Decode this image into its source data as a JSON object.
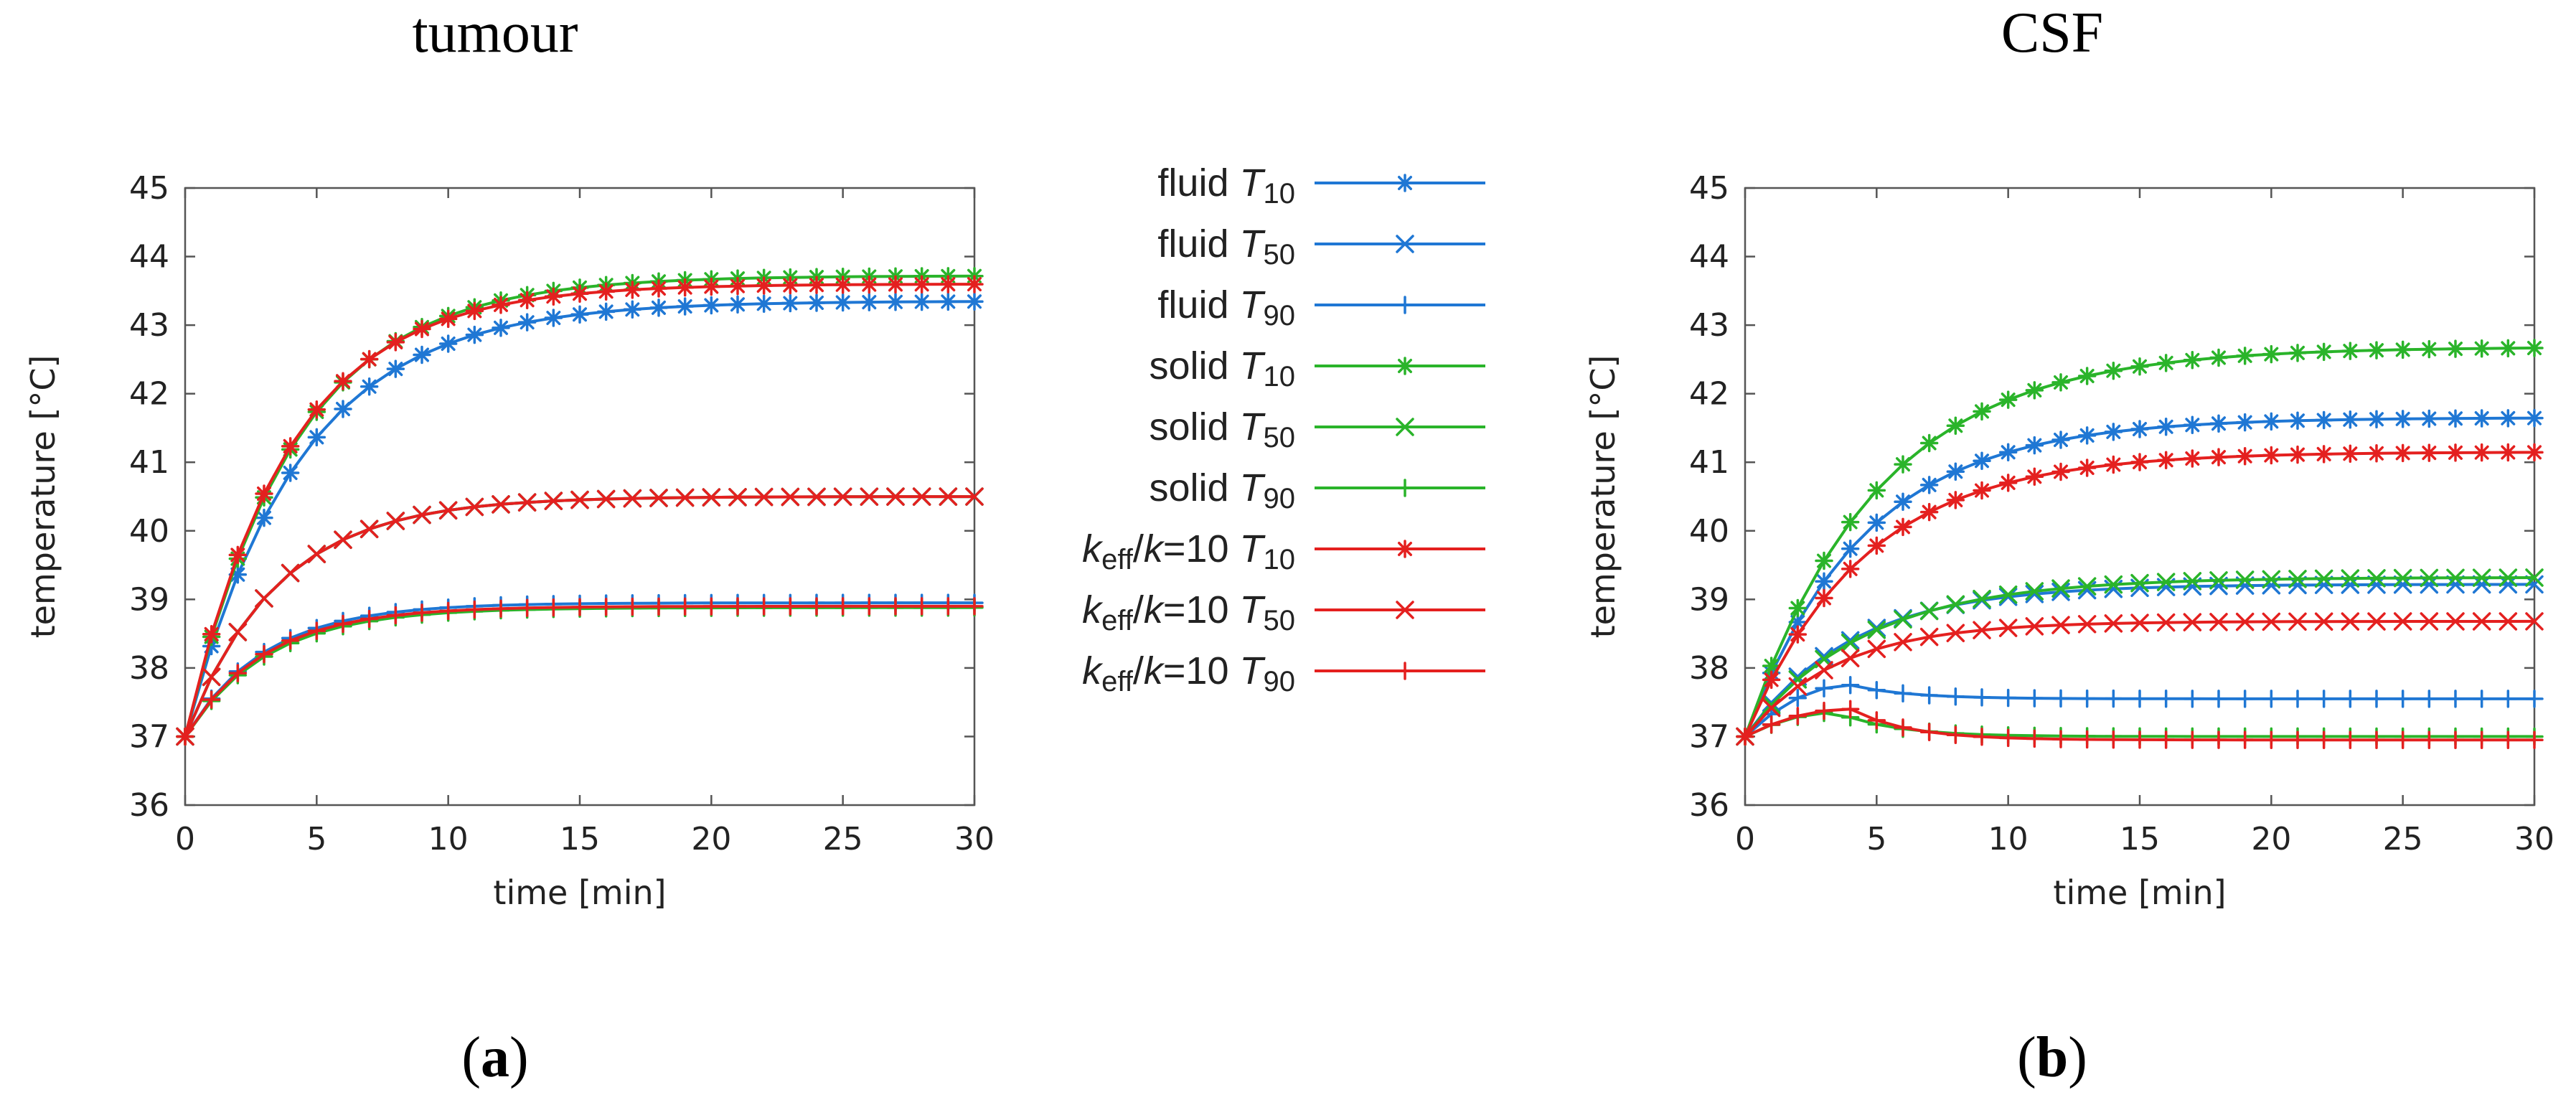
{
  "chart_data": [
    {
      "type": "line",
      "panel": "a",
      "title": "tumour",
      "panel_label": {
        "open": "(",
        "letter": "a",
        "close": ")"
      },
      "xlabel": "time [min]",
      "ylabel": "temperature [°C]",
      "xlim": [
        0,
        30
      ],
      "ylim": [
        36,
        45
      ],
      "xticks": [
        0,
        5,
        10,
        15,
        20,
        25,
        30
      ],
      "yticks": [
        36,
        37,
        38,
        39,
        40,
        41,
        42,
        43,
        44,
        45
      ],
      "series": [
        {
          "name": "fluid T10",
          "color": "#1f77d4",
          "marker": "asterisk",
          "params": {
            "a": 37,
            "b": 43.35,
            "tau": 4.3
          }
        },
        {
          "name": "fluid T50",
          "color": "#1f77d4",
          "marker": "x",
          "params": {
            "a": 37,
            "b": 40.5,
            "tau": 3.5
          }
        },
        {
          "name": "fluid T90",
          "color": "#1f77d4",
          "marker": "plus",
          "params": {
            "a": 37,
            "b": 38.95,
            "tau": 3.0
          }
        },
        {
          "name": "solid T10",
          "color": "#2ab42a",
          "marker": "asterisk",
          "params": {
            "a": 37,
            "b": 43.72,
            "tau": 4.1
          }
        },
        {
          "name": "solid T50",
          "color": "#2ab42a",
          "marker": "x",
          "params": {
            "a": 37,
            "b": 40.5,
            "tau": 3.5
          }
        },
        {
          "name": "solid T90",
          "color": "#2ab42a",
          "marker": "plus",
          "params": {
            "a": 37,
            "b": 38.88,
            "tau": 3.1
          }
        },
        {
          "name": "keff/k=10 T10",
          "color": "#e4201f",
          "marker": "asterisk",
          "params": {
            "a": 37,
            "b": 43.6,
            "tau": 3.9
          }
        },
        {
          "name": "keff/k=10 T50",
          "color": "#e4201f",
          "marker": "x",
          "params": {
            "a": 37,
            "b": 40.5,
            "tau": 3.5
          }
        },
        {
          "name": "keff/k=10 T90",
          "color": "#e4201f",
          "marker": "plus",
          "params": {
            "a": 37,
            "b": 38.9,
            "tau": 3.0
          }
        }
      ]
    },
    {
      "type": "line",
      "panel": "b",
      "title": "CSF",
      "panel_label": {
        "open": "(",
        "letter": "b",
        "close": ")"
      },
      "xlabel": "time [min]",
      "ylabel": "temperature [°C]",
      "xlim": [
        0,
        30
      ],
      "ylim": [
        36,
        45
      ],
      "xticks": [
        0,
        5,
        10,
        15,
        20,
        25,
        30
      ],
      "yticks": [
        36,
        37,
        38,
        39,
        40,
        41,
        42,
        43,
        44,
        45
      ],
      "series": [
        {
          "name": "fluid T10",
          "color": "#1f77d4",
          "marker": "asterisk",
          "params": {
            "a": 37,
            "b": 41.65,
            "tau": 4.5
          }
        },
        {
          "name": "fluid T50",
          "color": "#1f77d4",
          "marker": "x",
          "params": {
            "a": 37,
            "b": 39.22,
            "tau": 4.0
          }
        },
        {
          "name": "fluid T90",
          "color": "#1f77d4",
          "marker": "plus",
          "params": {
            "a": 37,
            "b": 37.55,
            "peak": 37.75,
            "tp": 4.0
          }
        },
        {
          "name": "solid T10",
          "color": "#2ab42a",
          "marker": "asterisk",
          "params": {
            "a": 37,
            "b": 42.68,
            "tau": 5.0
          }
        },
        {
          "name": "solid T50",
          "color": "#2ab42a",
          "marker": "x",
          "params": {
            "a": 37,
            "b": 39.32,
            "tau": 4.5
          }
        },
        {
          "name": "solid T90",
          "color": "#2ab42a",
          "marker": "plus",
          "params": {
            "a": 37,
            "b": 37.0,
            "peak": 37.35,
            "tp": 3.5
          }
        },
        {
          "name": "keff/k=10 T10",
          "color": "#e4201f",
          "marker": "asterisk",
          "params": {
            "a": 37,
            "b": 41.15,
            "tau": 4.5
          }
        },
        {
          "name": "keff/k=10 T50",
          "color": "#e4201f",
          "marker": "x",
          "params": {
            "a": 37,
            "b": 38.68,
            "tau": 3.5
          }
        },
        {
          "name": "keff/k=10 T90",
          "color": "#e4201f",
          "marker": "plus",
          "params": {
            "a": 37,
            "b": 36.95,
            "peak": 37.4,
            "tp": 4.0
          }
        }
      ]
    }
  ],
  "legend": {
    "entries": [
      {
        "label": "fluid ",
        "var": "T",
        "sub": "10",
        "color": "#1f77d4",
        "marker": "asterisk"
      },
      {
        "label": "fluid ",
        "var": "T",
        "sub": "50",
        "color": "#1f77d4",
        "marker": "x"
      },
      {
        "label": "fluid ",
        "var": "T",
        "sub": "90",
        "color": "#1f77d4",
        "marker": "plus"
      },
      {
        "label": "solid ",
        "var": "T",
        "sub": "10",
        "color": "#2ab42a",
        "marker": "asterisk"
      },
      {
        "label": "solid ",
        "var": "T",
        "sub": "50",
        "color": "#2ab42a",
        "marker": "x"
      },
      {
        "label": "solid ",
        "var": "T",
        "sub": "90",
        "color": "#2ab42a",
        "marker": "plus"
      },
      {
        "k1": "k",
        "eff": "eff",
        "slash": "/",
        "k2": "k",
        "eq": "=10 ",
        "var": "T",
        "sub": "10",
        "color": "#e4201f",
        "marker": "asterisk"
      },
      {
        "k1": "k",
        "eff": "eff",
        "slash": "/",
        "k2": "k",
        "eq": "=10 ",
        "var": "T",
        "sub": "50",
        "color": "#e4201f",
        "marker": "x"
      },
      {
        "k1": "k",
        "eff": "eff",
        "slash": "/",
        "k2": "k",
        "eq": "=10 ",
        "var": "T",
        "sub": "90",
        "color": "#e4201f",
        "marker": "plus"
      }
    ]
  }
}
